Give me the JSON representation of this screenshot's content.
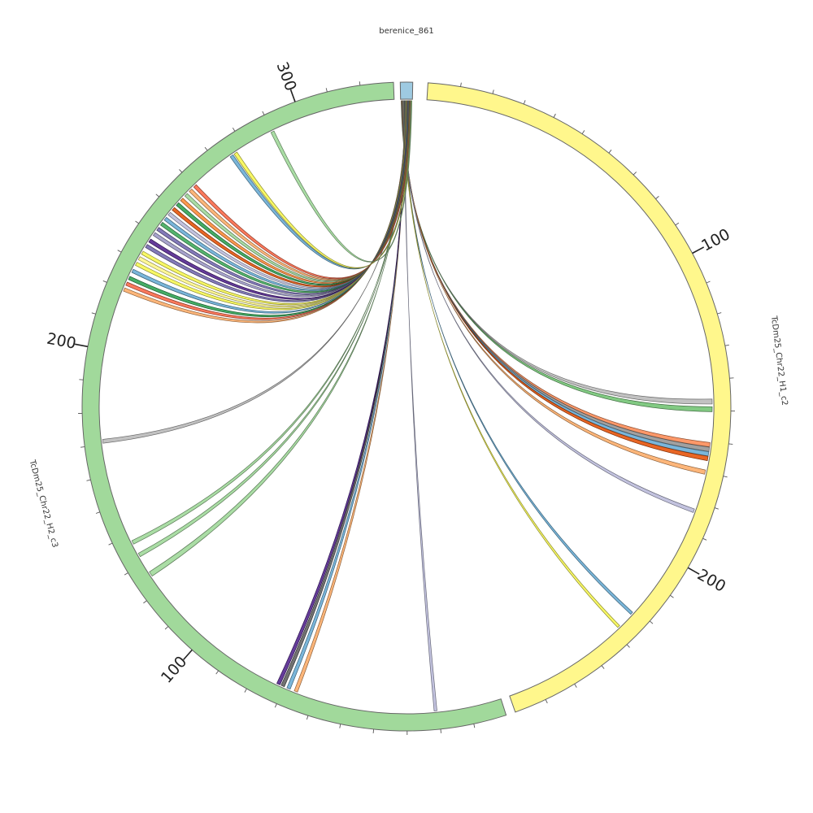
{
  "diagram": {
    "type": "circos",
    "segments": [
      {
        "id": "berenice_861",
        "name": "berenice_861",
        "length": 4,
        "color": "#9ecae1",
        "tick_labels": []
      },
      {
        "id": "Chr22_H1_c2",
        "name": "TcDm25_Chr22_H1_c2",
        "length": 270,
        "color": "#fff78c",
        "tick_labels": [
          "100",
          "200"
        ]
      },
      {
        "id": "Chr22_H2_c3",
        "name": "TcDm25_Chr22_H2_c3",
        "length": 330,
        "color": "#a1d99b",
        "tick_labels": [
          "100",
          "200",
          "300"
        ]
      }
    ],
    "links": [
      {
        "target": "Chr22_H1_c2",
        "pos": 147,
        "width": 1.6,
        "color": "#bbbbbb"
      },
      {
        "target": "Chr22_H1_c2",
        "pos": 149.5,
        "width": 1.6,
        "color": "#74c476"
      },
      {
        "target": "Chr22_H1_c2",
        "pos": 161,
        "width": 1.4,
        "color": "#fc8d59"
      },
      {
        "target": "Chr22_H1_c2",
        "pos": 162.5,
        "width": 1.4,
        "color": "#969696"
      },
      {
        "target": "Chr22_H1_c2",
        "pos": 164,
        "width": 1.4,
        "color": "#6baed6"
      },
      {
        "target": "Chr22_H1_c2",
        "pos": 165.5,
        "width": 1.4,
        "color": "#e6550d"
      },
      {
        "target": "Chr22_H1_c2",
        "pos": 170,
        "width": 1.4,
        "color": "#fdae6b"
      },
      {
        "target": "Chr22_H1_c2",
        "pos": 183,
        "width": 1.2,
        "color": "#bcbddc"
      },
      {
        "target": "Chr22_H1_c2",
        "pos": 222,
        "width": 0.9,
        "color": "#6baed6"
      },
      {
        "target": "Chr22_H1_c2",
        "pos": 228,
        "width": 0.9,
        "color": "#f7f754"
      },
      {
        "target": "Chr22_H2_c3",
        "pos": 21,
        "width": 0.9,
        "color": "#bcbddc"
      },
      {
        "target": "Chr22_H2_c3",
        "pos": 66,
        "width": 1.1,
        "color": "#fdae6b"
      },
      {
        "target": "Chr22_H2_c3",
        "pos": 68.5,
        "width": 1.1,
        "color": "#6baed6"
      },
      {
        "target": "Chr22_H2_c3",
        "pos": 70.5,
        "width": 1.1,
        "color": "#636363"
      },
      {
        "target": "Chr22_H2_c3",
        "pos": 72,
        "width": 1.1,
        "color": "#54278f"
      },
      {
        "target": "Chr22_H2_c3",
        "pos": 126,
        "width": 1.6,
        "color": "#a1d99b"
      },
      {
        "target": "Chr22_H2_c3",
        "pos": 133,
        "width": 1.2,
        "color": "#a1d99b"
      },
      {
        "target": "Chr22_H2_c3",
        "pos": 137.5,
        "width": 1.2,
        "color": "#a1d99b"
      },
      {
        "target": "Chr22_H2_c3",
        "pos": 171,
        "width": 1.2,
        "color": "#bbbbbb"
      },
      {
        "target": "Chr22_H2_c3",
        "pos": 220,
        "width": 1.1,
        "color": "#fdae6b"
      },
      {
        "target": "Chr22_H2_c3",
        "pos": 222,
        "width": 1.1,
        "color": "#fb6a4a"
      },
      {
        "target": "Chr22_H2_c3",
        "pos": 224,
        "width": 1.1,
        "color": "#31a354"
      },
      {
        "target": "Chr22_H2_c3",
        "pos": 226.5,
        "width": 1.1,
        "color": "#6baed6"
      },
      {
        "target": "Chr22_H2_c3",
        "pos": 229,
        "width": 1.1,
        "color": "#f7f754"
      },
      {
        "target": "Chr22_H2_c3",
        "pos": 231,
        "width": 1.1,
        "color": "#fff78c"
      },
      {
        "target": "Chr22_H2_c3",
        "pos": 233,
        "width": 1.1,
        "color": "#f7f754"
      },
      {
        "target": "Chr22_H2_c3",
        "pos": 235.5,
        "width": 1.1,
        "color": "#756bb1"
      },
      {
        "target": "Chr22_H2_c3",
        "pos": 237.5,
        "width": 1.1,
        "color": "#54278f"
      },
      {
        "target": "Chr22_H2_c3",
        "pos": 240,
        "width": 1.1,
        "color": "#9e9ac8"
      },
      {
        "target": "Chr22_H2_c3",
        "pos": 242,
        "width": 1.1,
        "color": "#756bb1"
      },
      {
        "target": "Chr22_H2_c3",
        "pos": 244,
        "width": 1.1,
        "color": "#41ab5d"
      },
      {
        "target": "Chr22_H2_c3",
        "pos": 246,
        "width": 1.1,
        "color": "#6baed6"
      },
      {
        "target": "Chr22_H2_c3",
        "pos": 248,
        "width": 1.1,
        "color": "#bcbddc"
      },
      {
        "target": "Chr22_H2_c3",
        "pos": 250,
        "width": 1.1,
        "color": "#e6550d"
      },
      {
        "target": "Chr22_H2_c3",
        "pos": 252,
        "width": 1.1,
        "color": "#31a354"
      },
      {
        "target": "Chr22_H2_c3",
        "pos": 254,
        "width": 1.1,
        "color": "#fd8d3c"
      },
      {
        "target": "Chr22_H2_c3",
        "pos": 256,
        "width": 1.1,
        "color": "#a1d99b"
      },
      {
        "target": "Chr22_H2_c3",
        "pos": 258,
        "width": 1.1,
        "color": "#fdae6b"
      },
      {
        "target": "Chr22_H2_c3",
        "pos": 260,
        "width": 1.1,
        "color": "#fb6a4a"
      },
      {
        "target": "Chr22_H2_c3",
        "pos": 275,
        "width": 1.1,
        "color": "#6baed6"
      },
      {
        "target": "Chr22_H2_c3",
        "pos": 276.5,
        "width": 1.1,
        "color": "#f7f754"
      },
      {
        "target": "Chr22_H2_c3",
        "pos": 290,
        "width": 1.1,
        "color": "#a1d99b"
      }
    ]
  }
}
